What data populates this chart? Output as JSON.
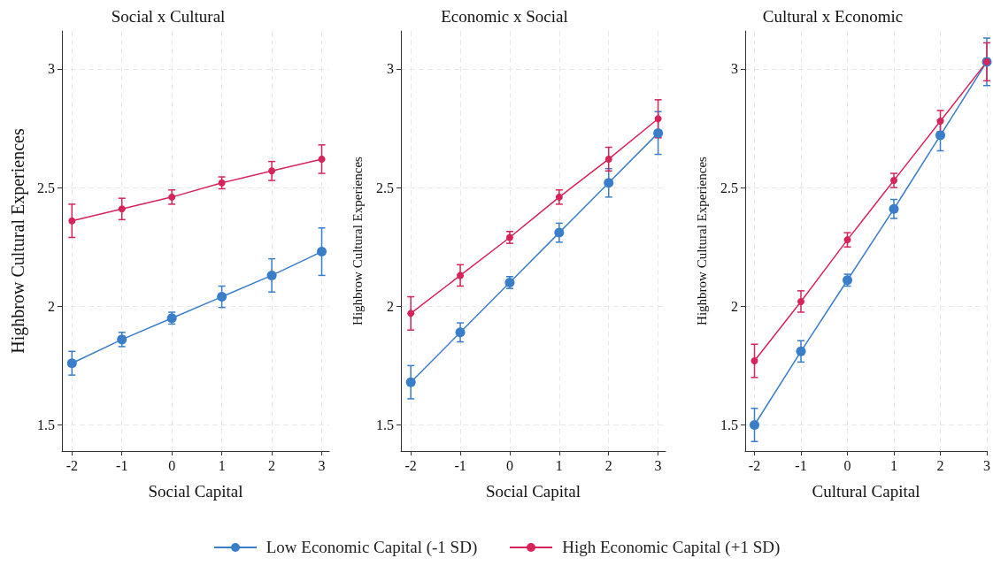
{
  "chart_data": [
    {
      "type": "line",
      "title": "Social x Cultural",
      "xlabel": "Social Capital",
      "ylabel": "Highbrow Cultural Experiences",
      "x": [
        -2,
        -1,
        0,
        1,
        2,
        3
      ],
      "xlim": [
        -2.2,
        3.15
      ],
      "xticks": [
        -2,
        -1,
        0,
        1,
        2,
        3
      ],
      "ylim": [
        1.39,
        3.16
      ],
      "yticks": [
        1.5,
        2,
        2.5,
        3
      ],
      "grid": true,
      "marker": "circle",
      "line_style": "solid",
      "legend": "bottom",
      "series": [
        {
          "name": "Low Economic Capital (-1 SD)",
          "color": "#3a7dc9",
          "values": [
            1.76,
            1.86,
            1.95,
            2.04,
            2.13,
            2.23
          ],
          "errors": [
            0.05,
            0.03,
            0.025,
            0.045,
            0.07,
            0.1
          ]
        },
        {
          "name": "High Economic Capital (+1 SD)",
          "color": "#d6245a",
          "values": [
            2.36,
            2.41,
            2.46,
            2.52,
            2.57,
            2.62
          ],
          "errors": [
            0.07,
            0.045,
            0.03,
            0.025,
            0.04,
            0.06
          ]
        }
      ]
    },
    {
      "type": "line",
      "title": "Economic x Social",
      "xlabel": "Social Capital",
      "ylabel": "Highbrow Cultural Experiences",
      "x": [
        -2,
        -1,
        0,
        1,
        2,
        3
      ],
      "xlim": [
        -2.2,
        3.15
      ],
      "xticks": [
        -2,
        -1,
        0,
        1,
        2,
        3
      ],
      "ylim": [
        1.39,
        3.16
      ],
      "yticks": [
        1.5,
        2,
        2.5,
        3
      ],
      "grid": true,
      "marker": "circle",
      "line_style": "solid",
      "legend": "bottom",
      "series": [
        {
          "name": "Low Economic Capital (-1 SD)",
          "color": "#3a7dc9",
          "values": [
            1.68,
            1.89,
            2.1,
            2.31,
            2.52,
            2.73
          ],
          "errors": [
            0.07,
            0.04,
            0.025,
            0.04,
            0.06,
            0.09
          ]
        },
        {
          "name": "High Economic Capital (+1 SD)",
          "color": "#d6245a",
          "values": [
            1.97,
            2.13,
            2.29,
            2.46,
            2.62,
            2.79
          ],
          "errors": [
            0.07,
            0.045,
            0.025,
            0.03,
            0.05,
            0.08
          ]
        }
      ]
    },
    {
      "type": "line",
      "title": "Cultural x Economic",
      "xlabel": "Cultural Capital",
      "ylabel": "Highbrow Cultural Experiences",
      "x": [
        -2,
        -1,
        0,
        1,
        2,
        3
      ],
      "xlim": [
        -2.2,
        3.0
      ],
      "xticks": [
        -2,
        -1,
        0,
        1,
        2,
        3
      ],
      "ylim": [
        1.39,
        3.16
      ],
      "yticks": [
        1.5,
        2,
        2.5,
        3
      ],
      "grid": true,
      "marker": "circle",
      "line_style": "solid",
      "legend": "bottom",
      "series": [
        {
          "name": "Low Economic Capital (-1 SD)",
          "color": "#3a7dc9",
          "values": [
            1.5,
            1.81,
            2.11,
            2.41,
            2.72,
            3.03
          ],
          "errors": [
            0.07,
            0.045,
            0.025,
            0.04,
            0.065,
            0.1
          ]
        },
        {
          "name": "High Economic Capital (+1 SD)",
          "color": "#d6245a",
          "values": [
            1.77,
            2.02,
            2.28,
            2.53,
            2.78,
            3.03
          ],
          "errors": [
            0.07,
            0.045,
            0.03,
            0.03,
            0.045,
            0.08
          ]
        }
      ]
    }
  ]
}
